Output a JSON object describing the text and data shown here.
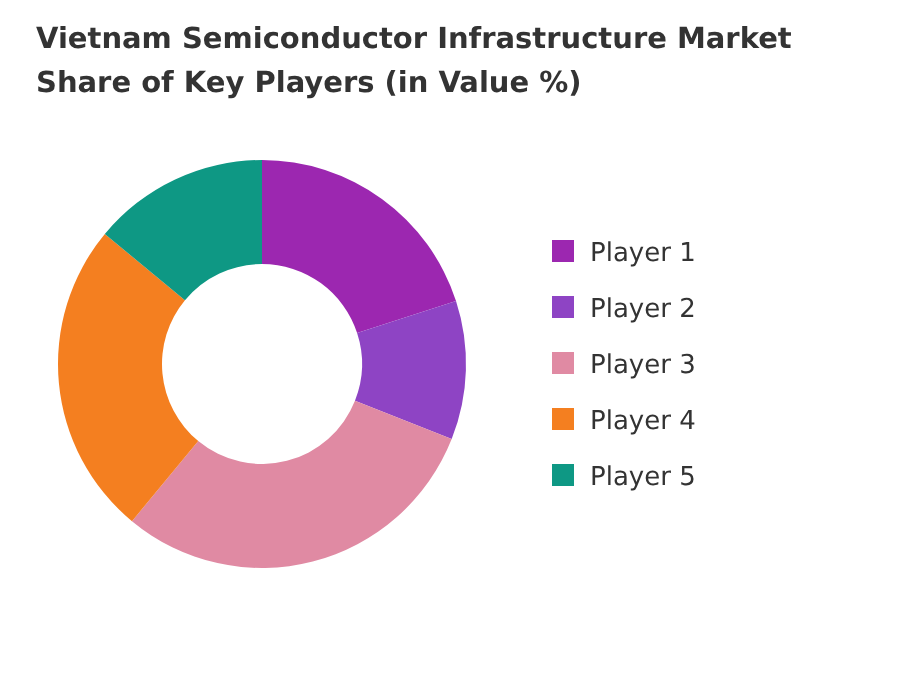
{
  "chart_data": {
    "type": "donut",
    "title": "Vietnam Semiconductor Infrastructure Market Share of Key Players (in Value %)",
    "categories": [
      "Player 1",
      "Player 2",
      "Player 3",
      "Player 4",
      "Player 5"
    ],
    "values": [
      20,
      11,
      30,
      25,
      14
    ],
    "colors": [
      "#9c27b0",
      "#8e44c4",
      "#e08aa3",
      "#f47f20",
      "#0e9884"
    ],
    "legend": "right"
  }
}
